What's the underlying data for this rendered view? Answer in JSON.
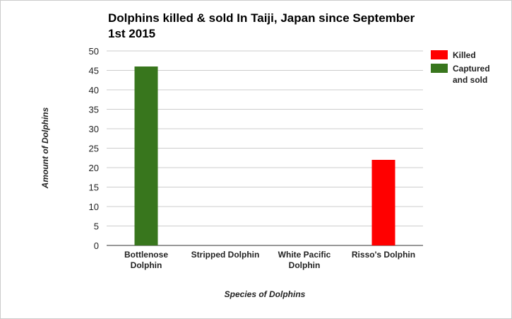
{
  "chart_data": {
    "type": "bar",
    "title": "Dolphins killed & sold In Taiji, Japan since September 1st 2015",
    "xlabel": "Species of Dolphins",
    "ylabel": "Amount of Dolphins",
    "ylim": [
      0,
      50
    ],
    "yticks": [
      0,
      5,
      10,
      15,
      20,
      25,
      30,
      35,
      40,
      45,
      50
    ],
    "grid": true,
    "legend_position": "right",
    "categories": [
      [
        "Bottlenose",
        "Dolphin"
      ],
      [
        "Stripped Dolphin"
      ],
      [
        "White Pacific",
        "Dolphin"
      ],
      [
        "Risso's Dolphin"
      ]
    ],
    "series": [
      {
        "name": "Killed",
        "color": "#ff0000",
        "values": [
          0,
          0,
          0,
          22
        ]
      },
      {
        "name": "Captured and sold",
        "legend_lines": [
          "Captured",
          "and sold"
        ],
        "color": "#38761d",
        "values": [
          46,
          0,
          0,
          0
        ]
      }
    ]
  }
}
